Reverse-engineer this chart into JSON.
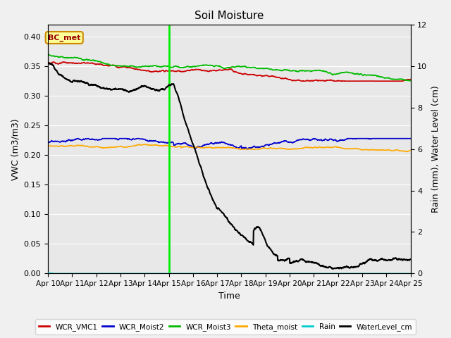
{
  "title": "Soil Moisture",
  "xlabel": "Time",
  "ylabel_left": "VWC (m3/m3)",
  "ylabel_right": "Rain (mm), Water Level (cm)",
  "ylim_left": [
    0,
    0.42
  ],
  "ylim_right": [
    0,
    12
  ],
  "yticks_left": [
    0.0,
    0.05,
    0.1,
    0.15,
    0.2,
    0.25,
    0.3,
    0.35,
    0.4
  ],
  "yticks_right": [
    0,
    2,
    4,
    6,
    8,
    10,
    12
  ],
  "date_labels": [
    "Apr 10",
    "Apr 11",
    "Apr 12",
    "Apr 13",
    "Apr 14",
    "Apr 15",
    "Apr 16",
    "Apr 17",
    "Apr 18",
    "Apr 19",
    "Apr 20",
    "Apr 21",
    "Apr 22",
    "Apr 23",
    "Apr 24",
    "Apr 25"
  ],
  "vertical_line_day": 5,
  "bc_met_text": "BC_met",
  "colors": {
    "WCR_VMC1": "#cc0000",
    "WCR_Moist2": "#0000cc",
    "WCR_Moist3": "#00bb00",
    "Theta_moist": "#ffaa00",
    "Rain": "#00cccc",
    "WaterLevel_cm": "#000000",
    "vline": "#00ee00"
  },
  "bg_color": "#e8e8e8",
  "fig_color": "#f0f0f0"
}
